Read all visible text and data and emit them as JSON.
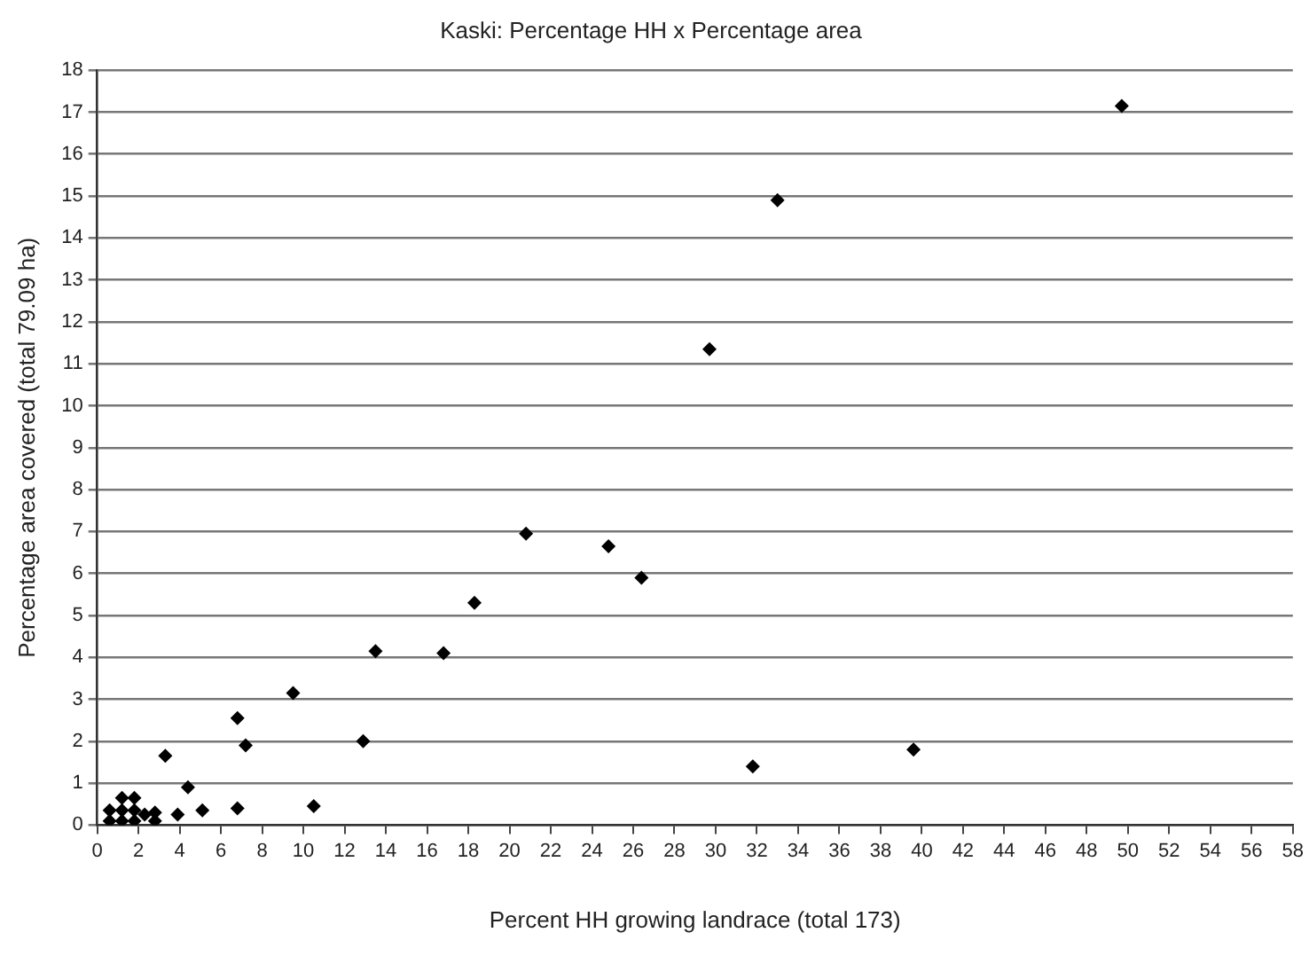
{
  "chart_data": {
    "type": "scatter",
    "title": "Kaski: Percentage HH x Percentage area",
    "xlabel": "Percent HH growing landrace (total 173)",
    "ylabel": "Percentage area covered (total 79.09 ha)",
    "x": [
      0.6,
      0.6,
      1.2,
      1.2,
      1.2,
      1.8,
      1.8,
      1.8,
      2.3,
      2.8,
      2.8,
      3.9,
      3.3,
      4.4,
      5.1,
      6.8,
      6.8,
      7.2,
      9.5,
      10.5,
      12.9,
      13.5,
      16.8,
      18.3,
      20.8,
      24.8,
      26.4,
      29.7,
      31.8,
      33,
      39.6,
      49.7
    ],
    "values": [
      0.1,
      0.35,
      0.1,
      0.35,
      0.65,
      0.1,
      0.35,
      0.65,
      0.25,
      0.1,
      0.3,
      0.25,
      1.65,
      0.9,
      0.35,
      0.4,
      2.55,
      1.9,
      3.15,
      0.45,
      2.0,
      4.15,
      4.1,
      5.3,
      6.95,
      6.65,
      5.9,
      11.35,
      1.4,
      14.9,
      1.8,
      17.15
    ],
    "color": "#000000",
    "marker": "diamond",
    "grid": "y",
    "legend": false,
    "xlim": [
      0,
      58
    ],
    "xticks": [
      0,
      2,
      4,
      6,
      8,
      10,
      12,
      14,
      16,
      18,
      20,
      22,
      24,
      26,
      28,
      30,
      32,
      34,
      36,
      38,
      40,
      42,
      44,
      46,
      48,
      50,
      52,
      54,
      56,
      58
    ],
    "ylim": [
      0,
      18
    ],
    "yticks": [
      0,
      1,
      2,
      3,
      4,
      5,
      6,
      7,
      8,
      9,
      10,
      11,
      12,
      13,
      14,
      15,
      16,
      17,
      18
    ]
  }
}
